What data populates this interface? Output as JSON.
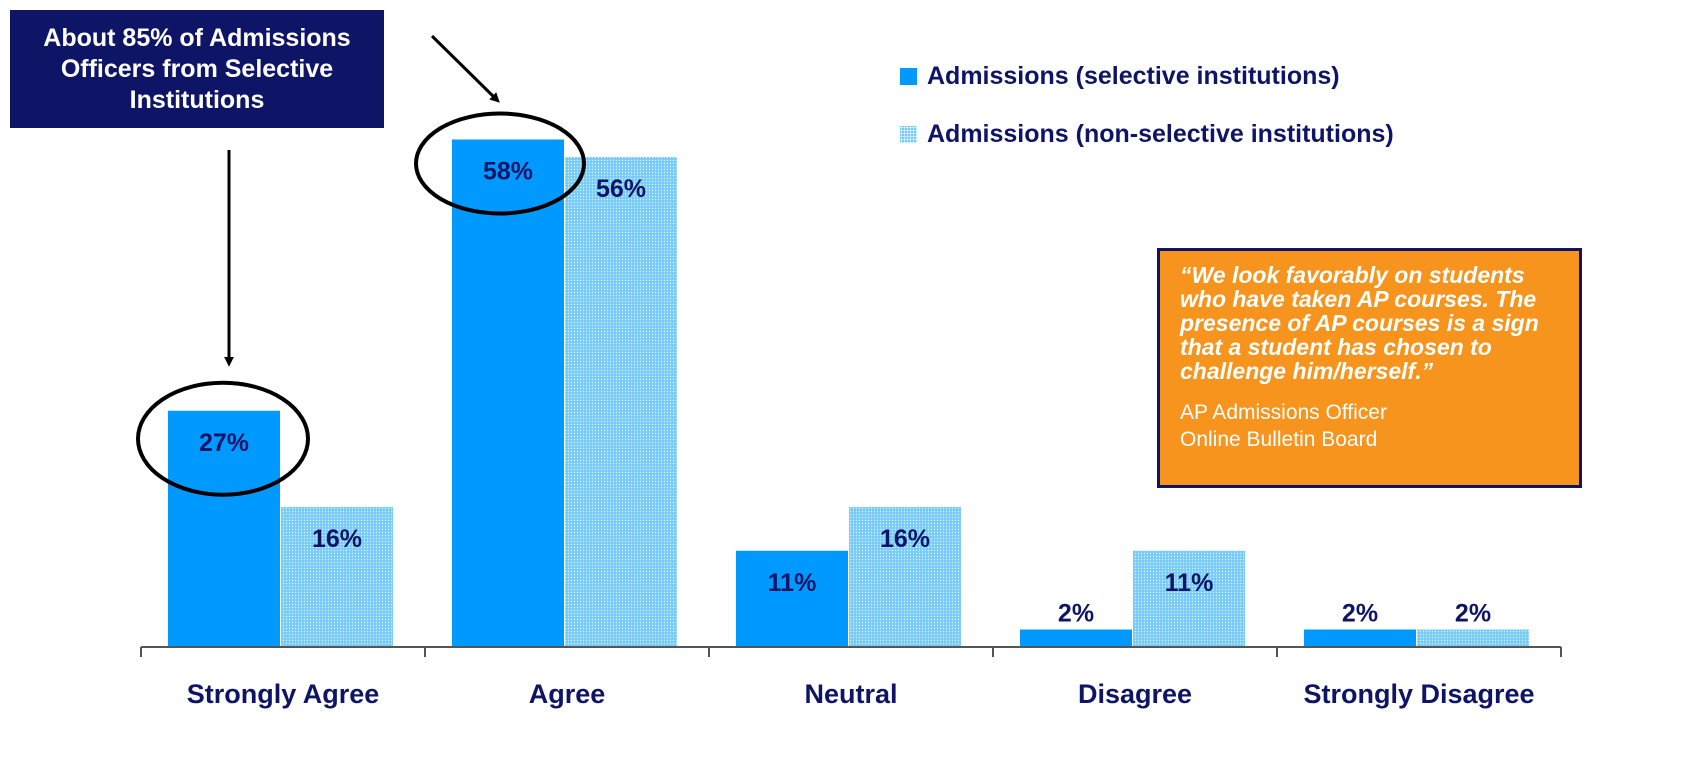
{
  "chart_data": {
    "type": "bar",
    "categories": [
      "Strongly Agree",
      "Agree",
      "Neutral",
      "Disagree",
      "Strongly Disagree"
    ],
    "series": [
      {
        "name": "Admissions (selective institutions)",
        "values": [
          27,
          58,
          11,
          2,
          2
        ],
        "color": "#0099ff"
      },
      {
        "name": "Admissions (non-selective institutions)",
        "values": [
          16,
          56,
          16,
          11,
          2
        ],
        "color": "#77ccf7"
      }
    ],
    "value_labels": {
      "selective": [
        "27%",
        "58%",
        "11%",
        "2%",
        "2%"
      ],
      "nonselective": [
        "16%",
        "56%",
        "16%",
        "11%",
        "2%"
      ]
    },
    "ylim": [
      0,
      60
    ],
    "grid": false,
    "legend_position": "top-right",
    "label_color": "#0e1466"
  },
  "callout": {
    "text": "About 85% of Admissions Officers from Selective Institutions",
    "background": "#0e1466"
  },
  "quote": {
    "text": "“We look favorably on students who have taken AP courses. The presence of AP courses is a sign that a student has chosen to challenge him/herself.”",
    "attribution_line1": "AP Admissions Officer",
    "attribution_line2": "Online Bulletin Board",
    "background": "#f7941d"
  }
}
